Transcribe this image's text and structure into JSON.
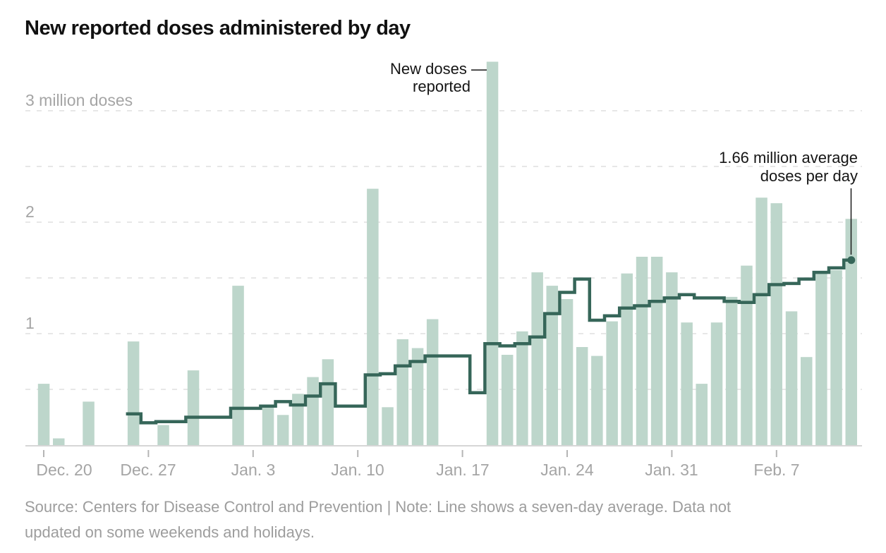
{
  "page": {
    "title": "New reported doses administered by day"
  },
  "annotations": {
    "peak": {
      "line1": "New doses —",
      "line2": "reported"
    },
    "average": {
      "line1": "1.66 million average",
      "line2": "doses per day"
    }
  },
  "footer": {
    "lines": [
      "Source: Centers for Disease Control and Prevention | Note: Line shows a seven-day average. Data not",
      "updated on some weekends and holidays."
    ]
  },
  "chart_data": {
    "type": "bar",
    "title": "New reported doses administered by day",
    "unit": "million doses",
    "ylim": [
      0,
      3.5
    ],
    "grid": "dashed horizontal",
    "gridline_values": [
      0.5,
      1,
      1.5,
      2,
      2.5,
      3
    ],
    "y_ticks": [
      {
        "value": 1,
        "label": "1"
      },
      {
        "value": 2,
        "label": "2"
      },
      {
        "value": 3,
        "label": "3 million doses"
      }
    ],
    "x_ticks": [
      {
        "index": 0,
        "label": "Dec. 20"
      },
      {
        "index": 7,
        "label": "Dec. 27"
      },
      {
        "index": 14,
        "label": "Jan. 3"
      },
      {
        "index": 21,
        "label": "Jan. 10"
      },
      {
        "index": 28,
        "label": "Jan. 17"
      },
      {
        "index": 35,
        "label": "Jan. 24"
      },
      {
        "index": 42,
        "label": "Jan. 31"
      },
      {
        "index": 49,
        "label": "Feb. 7"
      }
    ],
    "x": [
      "Dec. 20",
      "Dec. 21",
      "Dec. 22",
      "Dec. 23",
      "Dec. 24",
      "Dec. 25",
      "Dec. 26",
      "Dec. 27",
      "Dec. 28",
      "Dec. 29",
      "Dec. 30",
      "Dec. 31",
      "Jan. 1",
      "Jan. 2",
      "Jan. 3",
      "Jan. 4",
      "Jan. 5",
      "Jan. 6",
      "Jan. 7",
      "Jan. 8",
      "Jan. 9",
      "Jan. 10",
      "Jan. 11",
      "Jan. 12",
      "Jan. 13",
      "Jan. 14",
      "Jan. 15",
      "Jan. 16",
      "Jan. 17",
      "Jan. 18",
      "Jan. 19",
      "Jan. 20",
      "Jan. 21",
      "Jan. 22",
      "Jan. 23",
      "Jan. 24",
      "Jan. 25",
      "Jan. 26",
      "Jan. 27",
      "Jan. 28",
      "Jan. 29",
      "Jan. 30",
      "Jan. 31",
      "Feb. 1",
      "Feb. 2",
      "Feb. 3",
      "Feb. 4",
      "Feb. 5",
      "Feb. 6",
      "Feb. 7",
      "Feb. 8",
      "Feb. 9",
      "Feb. 10",
      "Feb. 11",
      "Feb. 12"
    ],
    "series": [
      {
        "name": "New doses reported",
        "type": "bar",
        "values": [
          0.55,
          0.06,
          0,
          0.39,
          0,
          0,
          0.93,
          0,
          0.18,
          0,
          0.67,
          0,
          0,
          1.43,
          0,
          0.34,
          0.27,
          0.46,
          0.61,
          0.77,
          0,
          0,
          2.3,
          0.34,
          0.95,
          0.87,
          1.13,
          0,
          0,
          0,
          3.44,
          0.81,
          1.02,
          1.55,
          1.43,
          1.31,
          0.88,
          0.8,
          1.11,
          1.54,
          1.69,
          1.69,
          1.55,
          1.1,
          0.55,
          1.1,
          1.33,
          1.61,
          2.22,
          2.17,
          1.2,
          0.79,
          1.54,
          1.57,
          2.03
        ]
      },
      {
        "name": "Seven-day average",
        "type": "step-line",
        "values": [
          null,
          null,
          null,
          null,
          null,
          null,
          0.28,
          0.2,
          0.21,
          0.21,
          0.25,
          0.25,
          0.25,
          0.33,
          0.33,
          0.35,
          0.39,
          0.36,
          0.44,
          0.55,
          0.35,
          0.35,
          0.63,
          0.64,
          0.71,
          0.75,
          0.8,
          0.8,
          0.8,
          0.47,
          0.91,
          0.89,
          0.91,
          0.97,
          1.18,
          1.37,
          1.49,
          1.12,
          1.16,
          1.23,
          1.25,
          1.29,
          1.32,
          1.35,
          1.32,
          1.32,
          1.29,
          1.28,
          1.35,
          1.44,
          1.45,
          1.49,
          1.55,
          1.59,
          1.66
        ]
      }
    ],
    "end_point": {
      "date": "Feb. 12",
      "value": 1.66,
      "label": "1.66 million average doses per day"
    },
    "colors": {
      "bar": "#bdd6cb",
      "line": "#366659",
      "grid": "#dfdfdf",
      "axis": "#d6d6d6",
      "tick": "#b5b5b5",
      "axis_text": "#a5a5a5",
      "text": "#151515",
      "connector": "#1a1a1a"
    }
  }
}
